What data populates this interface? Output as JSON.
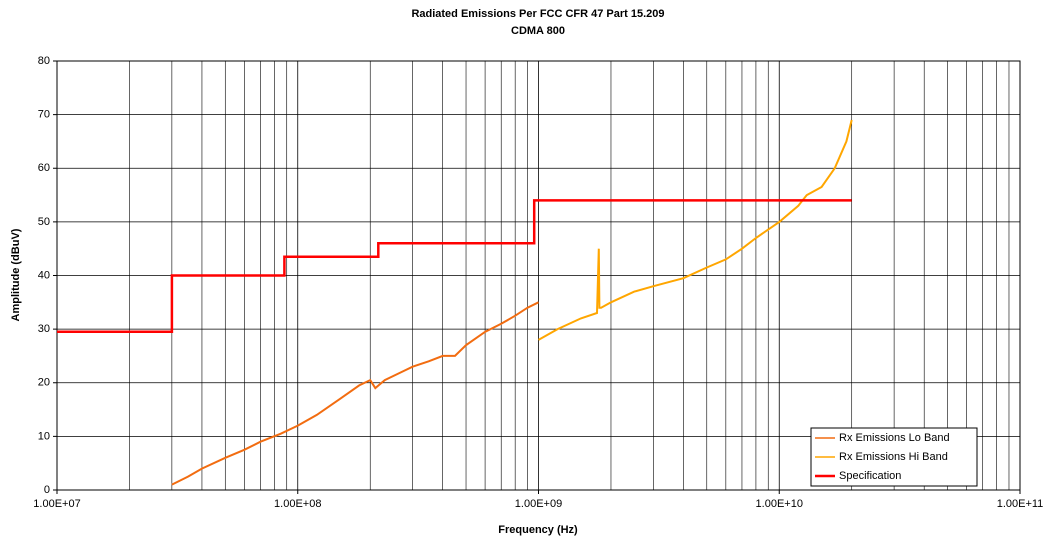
{
  "chart_data": {
    "type": "line",
    "title": "Radiated Emissions Per FCC CFR 47 Part 15.209",
    "subtitle": "CDMA 800",
    "x_label": "Frequency (Hz)",
    "y_label": "Amplitude (dBuV)",
    "xscale": "log",
    "xlim": [
      10000000,
      100000000000
    ],
    "xticks": [
      {
        "value": 10000000,
        "label": "1.00E+07"
      },
      {
        "value": 100000000,
        "label": "1.00E+08"
      },
      {
        "value": 1000000000,
        "label": "1.00E+09"
      },
      {
        "value": 10000000000,
        "label": "1.00E+10"
      },
      {
        "value": 100000000000,
        "label": "1.00E+11"
      }
    ],
    "xminorticks": [
      20000000,
      30000000,
      40000000,
      50000000,
      60000000,
      70000000,
      80000000,
      90000000,
      200000000,
      300000000,
      400000000,
      500000000,
      600000000,
      700000000,
      800000000,
      900000000,
      2000000000,
      3000000000,
      4000000000,
      5000000000,
      6000000000,
      7000000000,
      8000000000,
      9000000000,
      20000000000,
      30000000000,
      40000000000,
      50000000000,
      60000000000,
      70000000000,
      80000000000,
      90000000000
    ],
    "ylim": [
      0,
      80
    ],
    "yticks": [
      0,
      10,
      20,
      30,
      40,
      50,
      60,
      70,
      80
    ],
    "grid": true,
    "legend": "lower right",
    "series": [
      {
        "name": "Rx Emissions Lo Band",
        "color": "#f26c10",
        "x": [
          30000000,
          35000000,
          40000000,
          50000000,
          60000000,
          70000000,
          85000000,
          100000000,
          120000000,
          150000000,
          180000000,
          200000000,
          210000000,
          230000000,
          270000000,
          300000000,
          350000000,
          400000000,
          450000000,
          500000000,
          600000000,
          700000000,
          800000000,
          900000000,
          1000000000
        ],
        "values": [
          1,
          2.5,
          4,
          6,
          7.5,
          9,
          10.5,
          12,
          14,
          17,
          19.5,
          20.5,
          19,
          20.5,
          22,
          23,
          24,
          25,
          25,
          27,
          29.5,
          31,
          32.5,
          34,
          35
        ]
      },
      {
        "name": "Rx Emissions Hi Band",
        "color": "#ffa600",
        "x": [
          1000000000,
          1200000000,
          1500000000,
          1750000000,
          1780000000,
          1790000000,
          1820000000,
          2000000000,
          2500000000,
          3000000000,
          4000000000,
          5000000000,
          6000000000,
          7000000000,
          8000000000,
          10000000000,
          12000000000,
          13000000000,
          15000000000,
          17000000000,
          19000000000,
          20000000000
        ],
        "values": [
          28,
          30,
          32,
          33,
          45,
          34,
          34,
          35,
          37,
          38,
          39.5,
          41.5,
          43,
          45,
          47,
          50,
          53,
          55,
          56.5,
          60,
          65,
          69
        ]
      },
      {
        "name": "Specification",
        "color": "#ff0000",
        "x": [
          10000000,
          30000000,
          30000000,
          88000000,
          88000000,
          216000000,
          216000000,
          960000000,
          960000000,
          20000000000
        ],
        "values": [
          29.5,
          29.5,
          40,
          40,
          43.5,
          43.5,
          46,
          46,
          54,
          54
        ]
      }
    ]
  }
}
